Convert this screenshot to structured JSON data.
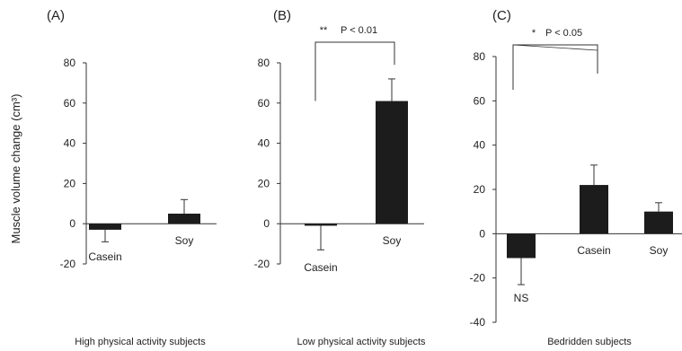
{
  "figure": {
    "ylabel": "Muscle volume change (cm³)"
  },
  "chart_data": [
    {
      "type": "bar",
      "panel_label": "(A)",
      "xlabel": "High physical activity subjects",
      "categories": [
        "Casein",
        "Soy"
      ],
      "values": [
        -3,
        5
      ],
      "error_bars": [
        6,
        7
      ],
      "ylim": [
        -20,
        80
      ],
      "yticks": [
        -20,
        0,
        20,
        40,
        60,
        80
      ],
      "grid": false,
      "annotations": []
    },
    {
      "type": "bar",
      "panel_label": "(B)",
      "xlabel": "Low physical activity subjects",
      "categories": [
        "Casein",
        "Soy"
      ],
      "values": [
        -1,
        61
      ],
      "error_bars": [
        12,
        11
      ],
      "ylim": [
        -20,
        80
      ],
      "yticks": [
        -20,
        0,
        20,
        40,
        60,
        80
      ],
      "grid": false,
      "annotations": [
        "**",
        "P < 0.01"
      ]
    },
    {
      "type": "bar",
      "panel_label": "(C)",
      "xlabel": "Bedridden subjects",
      "categories": [
        "NS",
        "Casein",
        "Soy"
      ],
      "values": [
        -11,
        22,
        10
      ],
      "error_bars": [
        12,
        9,
        4
      ],
      "ylim": [
        -40,
        80
      ],
      "yticks": [
        -40,
        -20,
        0,
        20,
        40,
        60,
        80
      ],
      "grid": false,
      "annotations": [
        "*",
        "P < 0.05"
      ]
    }
  ]
}
